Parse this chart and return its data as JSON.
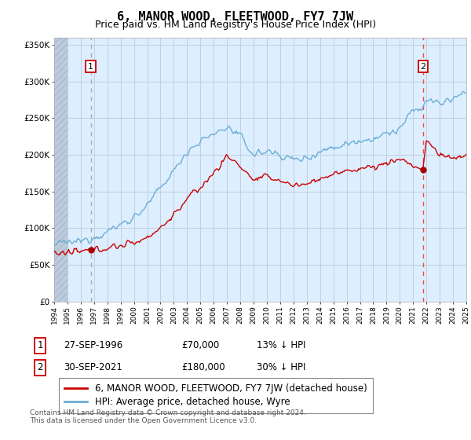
{
  "title": "6, MANOR WOOD, FLEETWOOD, FY7 7JW",
  "subtitle": "Price paid vs. HM Land Registry's House Price Index (HPI)",
  "ylim": [
    0,
    360000
  ],
  "yticks": [
    0,
    50000,
    100000,
    150000,
    200000,
    250000,
    300000,
    350000
  ],
  "ytick_labels": [
    "£0",
    "£50K",
    "£100K",
    "£150K",
    "£200K",
    "£250K",
    "£300K",
    "£350K"
  ],
  "x_start_year": 1994,
  "x_end_year": 2025,
  "sale1_date": 1996.75,
  "sale1_price": 70000,
  "sale2_date": 2021.75,
  "sale2_price": 180000,
  "hpi_color": "#6aafd6",
  "price_color": "#cc0000",
  "sale1_vline_color": "#aaaaaa",
  "sale2_vline_color": "#ff4444",
  "marker_color": "#aa0000",
  "bg_color": "#ddeeff",
  "hatch_color": "#bbccdd",
  "grid_color": "#c0d0e0",
  "legend_label1": "6, MANOR WOOD, FLEETWOOD, FY7 7JW (detached house)",
  "legend_label2": "HPI: Average price, detached house, Wyre",
  "table_row1": [
    "1",
    "27-SEP-1996",
    "£70,000",
    "13% ↓ HPI"
  ],
  "table_row2": [
    "2",
    "30-SEP-2021",
    "£180,000",
    "30% ↓ HPI"
  ],
  "footnote": "Contains HM Land Registry data © Crown copyright and database right 2024.\nThis data is licensed under the Open Government Licence v3.0.",
  "title_fontsize": 11,
  "subtitle_fontsize": 9,
  "tick_fontsize": 7.5,
  "legend_fontsize": 8.5
}
